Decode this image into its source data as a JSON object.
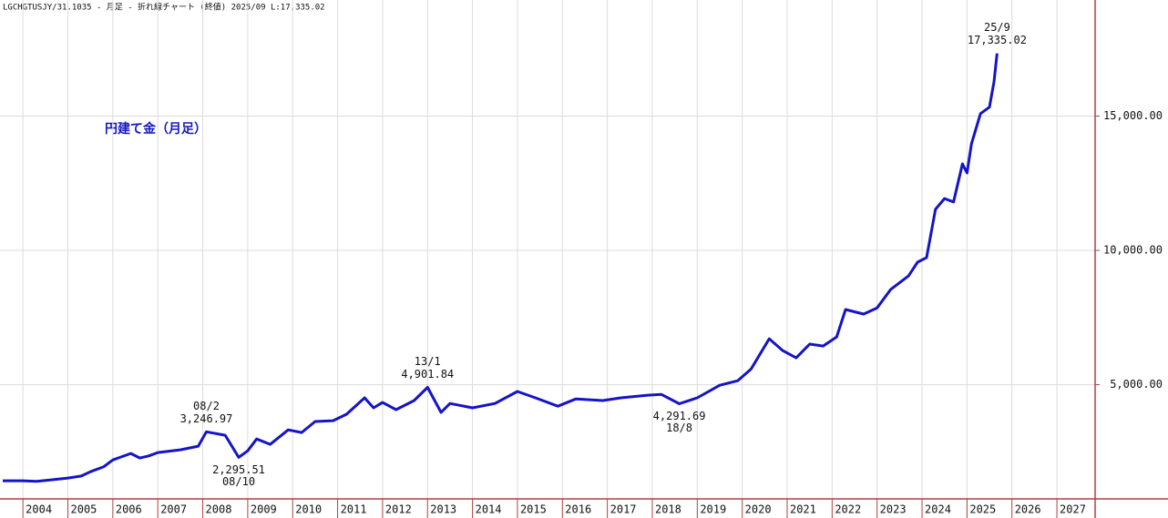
{
  "header": "LGCHGTUSJY/31.1035 - 月足 - 折れ線チャート (終値)  2025/09 L:17,335.02",
  "chart_data": {
    "type": "line",
    "title": "円建て金（月足）",
    "color": "#1414c8",
    "x": [
      2003.55,
      2004.0,
      2004.3,
      2004.6,
      2005.0,
      2005.3,
      2005.5,
      2005.8,
      2006.0,
      2006.4,
      2006.6,
      2006.8,
      2007.0,
      2007.5,
      2007.9,
      2008.08,
      2008.5,
      2008.8,
      2009.0,
      2009.2,
      2009.5,
      2009.9,
      2010.2,
      2010.5,
      2010.9,
      2011.2,
      2011.6,
      2011.8,
      2012.0,
      2012.3,
      2012.7,
      2013.0,
      2013.3,
      2013.5,
      2014.0,
      2014.5,
      2015.0,
      2015.4,
      2015.9,
      2016.3,
      2016.9,
      2017.3,
      2017.9,
      2018.2,
      2018.6,
      2019.0,
      2019.5,
      2019.9,
      2020.2,
      2020.6,
      2020.9,
      2021.2,
      2021.5,
      2021.8,
      2022.1,
      2022.3,
      2022.7,
      2023.0,
      2023.3,
      2023.7,
      2023.9,
      2024.1,
      2024.3,
      2024.5,
      2024.7,
      2024.9,
      2025.0,
      2025.1,
      2025.3,
      2025.5,
      2025.6,
      2025.67
    ],
    "values": [
      1424,
      1424,
      1400,
      1450,
      1525,
      1600,
      1760,
      1950,
      2200,
      2440,
      2270,
      2350,
      2475,
      2576,
      2712,
      3246.97,
      3120,
      2295.51,
      2540,
      2980,
      2780,
      3320,
      3220,
      3630,
      3660,
      3900,
      4510,
      4140,
      4340,
      4070,
      4410,
      4901.84,
      3970,
      4300,
      4140,
      4300,
      4750,
      4510,
      4200,
      4470,
      4410,
      4510,
      4610,
      4640,
      4291.69,
      4510,
      4980,
      5150,
      5590,
      6710,
      6270,
      6000,
      6510,
      6440,
      6780,
      7800,
      7630,
      7860,
      8540,
      9050,
      9560,
      9730,
      11530,
      11930,
      11800,
      13220,
      12880,
      13970,
      15090,
      15330,
      16270,
      17335.02
    ],
    "xlim": [
      2003.49,
      2027.85
    ],
    "ylim": [
      750,
      19320
    ],
    "xticks": [
      2004,
      2005,
      2006,
      2007,
      2008,
      2009,
      2010,
      2011,
      2012,
      2013,
      2014,
      2015,
      2016,
      2017,
      2018,
      2019,
      2020,
      2021,
      2022,
      2023,
      2024,
      2025,
      2026,
      2027
    ],
    "yticks": [
      {
        "value": 5000,
        "label": "5,000.00"
      },
      {
        "value": 10000,
        "label": "10,000.00"
      },
      {
        "value": 15000,
        "label": "15,000.00"
      }
    ],
    "grid": true,
    "annotations": {
      "highs": [
        {
          "x": 2008.08,
          "value": 3246.97,
          "date": "08/2",
          "label": "3,246.97"
        },
        {
          "x": 2013.0,
          "value": 4901.84,
          "date": "13/1",
          "label": "4,901.84"
        },
        {
          "x": 2025.67,
          "value": 17335.02,
          "date": "25/9",
          "label": "17,335.02"
        }
      ],
      "lows": [
        {
          "x": 2008.8,
          "value": 2295.51,
          "date": "08/10",
          "label": "2,295.51"
        },
        {
          "x": 2018.6,
          "value": 4291.69,
          "date": "18/8",
          "label": "4,291.69"
        }
      ]
    }
  }
}
